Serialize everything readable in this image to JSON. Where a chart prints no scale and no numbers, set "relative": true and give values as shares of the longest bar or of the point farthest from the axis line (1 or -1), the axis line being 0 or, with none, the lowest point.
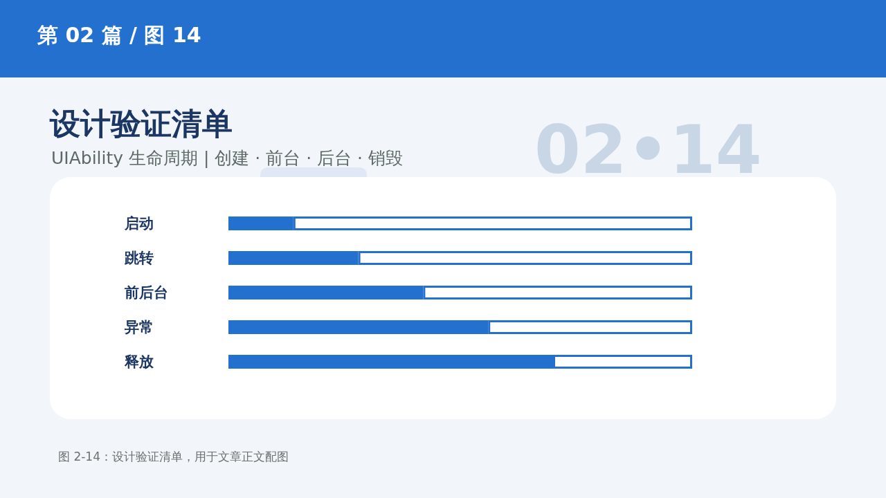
{
  "chart_data": {
    "type": "bar",
    "orientation": "horizontal",
    "stacked": true,
    "relative": true,
    "tick_labels": "y",
    "title": "设计验证清单",
    "subtitle": "UIAbility 生命周期 | 创建 · 前台 · 后台 · 销毁",
    "annotations": [
      "第 02 篇 / 图 14",
      "02•14",
      "图 2-14：设计验证清单，用于文章正文配图"
    ],
    "categories": [
      "启动",
      "跳转",
      "前后台",
      "异常",
      "释放"
    ],
    "series": [
      {
        "color": "#2470cf",
        "values": [
          0.14,
          0.28,
          0.42,
          0.56,
          0.7
        ]
      },
      {
        "color": "#ffffff",
        "values": [
          0.86,
          0.72,
          0.58,
          0.44,
          0.3
        ]
      }
    ]
  }
}
